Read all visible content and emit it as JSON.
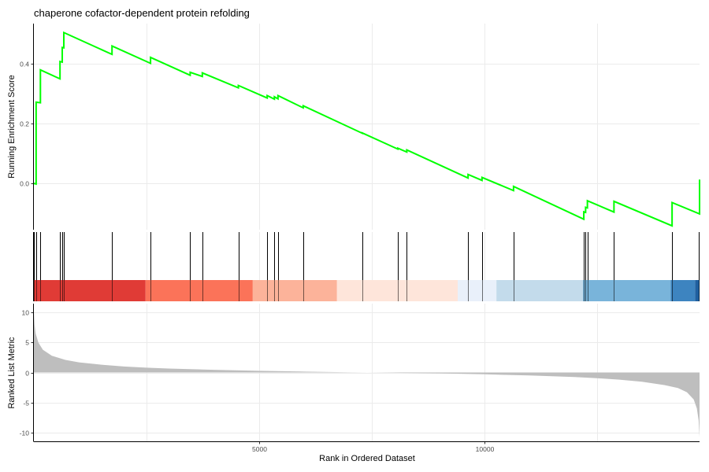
{
  "chart_data": {
    "type": "line",
    "title": "chaperone cofactor-dependent protein refolding",
    "xlabel": "Rank in Ordered Dataset",
    "xlim": [
      0,
      14780
    ],
    "x_ticks": [
      {
        "value": 5000,
        "label": "5000"
      },
      {
        "value": 10000,
        "label": "10000"
      }
    ],
    "x_gridlines": [
      0,
      2500,
      5000,
      7500,
      10000,
      12500
    ],
    "grid": true,
    "panels": {
      "enrichment": {
        "ylabel": "Running Enrichment Score",
        "ylim": [
          -0.155,
          0.535
        ],
        "y_ticks": [
          {
            "value": 0.0,
            "label": "0.0"
          },
          {
            "value": 0.2,
            "label": "0.2"
          },
          {
            "value": 0.4,
            "label": "0.4"
          }
        ],
        "line_color": "#00ff00",
        "hits": [
          {
            "x": 0,
            "es_before": 0.0,
            "es_after": 0.0
          },
          {
            "x": 50,
            "es_before": -0.002,
            "es_after": 0.272
          },
          {
            "x": 145,
            "es_before": 0.27,
            "es_after": 0.38
          },
          {
            "x": 580,
            "es_before": 0.35,
            "es_after": 0.408
          },
          {
            "x": 630,
            "es_before": 0.406,
            "es_after": 0.455
          },
          {
            "x": 665,
            "es_before": 0.454,
            "es_after": 0.505
          },
          {
            "x": 1735,
            "es_before": 0.432,
            "es_after": 0.46
          },
          {
            "x": 2590,
            "es_before": 0.402,
            "es_after": 0.422
          },
          {
            "x": 3470,
            "es_before": 0.362,
            "es_after": 0.372
          },
          {
            "x": 3740,
            "es_before": 0.358,
            "es_after": 0.37
          },
          {
            "x": 4540,
            "es_before": 0.32,
            "es_after": 0.328
          },
          {
            "x": 5180,
            "es_before": 0.286,
            "es_after": 0.294
          },
          {
            "x": 5340,
            "es_before": 0.282,
            "es_after": 0.29
          },
          {
            "x": 5420,
            "es_before": 0.283,
            "es_after": 0.294
          },
          {
            "x": 5980,
            "es_before": 0.253,
            "es_after": 0.26
          },
          {
            "x": 7290,
            "es_before": 0.168,
            "es_after": 0.169
          },
          {
            "x": 8080,
            "es_before": 0.115,
            "es_after": 0.118
          },
          {
            "x": 8280,
            "es_before": 0.105,
            "es_after": 0.112
          },
          {
            "x": 9640,
            "es_before": 0.018,
            "es_after": 0.03
          },
          {
            "x": 9950,
            "es_before": 0.01,
            "es_after": 0.02
          },
          {
            "x": 10650,
            "es_before": -0.024,
            "es_after": -0.01
          },
          {
            "x": 12210,
            "es_before": -0.12,
            "es_after": -0.095
          },
          {
            "x": 12250,
            "es_before": -0.097,
            "es_after": -0.08
          },
          {
            "x": 12290,
            "es_before": -0.082,
            "es_after": -0.058
          },
          {
            "x": 12880,
            "es_before": -0.096,
            "es_after": -0.06
          },
          {
            "x": 14170,
            "es_before": -0.142,
            "es_after": -0.064
          },
          {
            "x": 14780,
            "es_before": -0.102,
            "es_after": 0.013
          },
          {
            "x": 14780,
            "es_before": 0.001,
            "es_after": 0.001
          }
        ]
      },
      "hits_strip": {
        "x_positions": [
          0,
          50,
          145,
          580,
          630,
          665,
          1735,
          2590,
          3470,
          3740,
          4540,
          5180,
          5340,
          5420,
          5980,
          7290,
          8080,
          8280,
          9640,
          9950,
          10650,
          12210,
          12250,
          12290,
          12880,
          14170,
          14780
        ]
      },
      "color_bar": {
        "segments": [
          {
            "from": 0,
            "to": 2480,
            "color": "#e03b36"
          },
          {
            "from": 2480,
            "to": 4860,
            "color": "#fb7359"
          },
          {
            "from": 4860,
            "to": 6730,
            "color": "#fcb39a"
          },
          {
            "from": 6730,
            "to": 9410,
            "color": "#fee5da"
          },
          {
            "from": 9410,
            "to": 10270,
            "color": "#e9f0fa"
          },
          {
            "from": 10270,
            "to": 12190,
            "color": "#c3dbeb"
          },
          {
            "from": 12190,
            "to": 14140,
            "color": "#79b4da"
          },
          {
            "from": 14140,
            "to": 14680,
            "color": "#3d84c0"
          },
          {
            "from": 14680,
            "to": 14780,
            "color": "#1f5f9f"
          }
        ]
      },
      "ranked_metric": {
        "ylabel": "Ranked List Metric",
        "ylim": [
          -11.5,
          11.5
        ],
        "y_ticks": [
          {
            "value": 10,
            "label": "10"
          },
          {
            "value": 5,
            "label": "5"
          },
          {
            "value": 0,
            "label": "0"
          },
          {
            "value": -5,
            "label": "-5"
          },
          {
            "value": -10,
            "label": "-10"
          }
        ],
        "fill_color": "#bebebe",
        "profile": [
          [
            0,
            10.2
          ],
          [
            15,
            8.0
          ],
          [
            40,
            6.5
          ],
          [
            100,
            5.0
          ],
          [
            200,
            3.8
          ],
          [
            400,
            2.8
          ],
          [
            700,
            2.1
          ],
          [
            1000,
            1.7
          ],
          [
            1500,
            1.3
          ],
          [
            2000,
            1.0
          ],
          [
            2500,
            0.8
          ],
          [
            3000,
            0.65
          ],
          [
            4000,
            0.45
          ],
          [
            5000,
            0.28
          ],
          [
            6000,
            0.15
          ],
          [
            7000,
            0.04
          ],
          [
            8000,
            -0.05
          ],
          [
            9000,
            -0.15
          ],
          [
            10000,
            -0.3
          ],
          [
            11000,
            -0.5
          ],
          [
            12000,
            -0.75
          ],
          [
            12500,
            -0.95
          ],
          [
            13000,
            -1.2
          ],
          [
            13500,
            -1.55
          ],
          [
            14000,
            -2.1
          ],
          [
            14300,
            -2.6
          ],
          [
            14500,
            -3.3
          ],
          [
            14650,
            -4.5
          ],
          [
            14720,
            -6.0
          ],
          [
            14760,
            -8.0
          ],
          [
            14780,
            -10.8
          ]
        ]
      }
    }
  }
}
